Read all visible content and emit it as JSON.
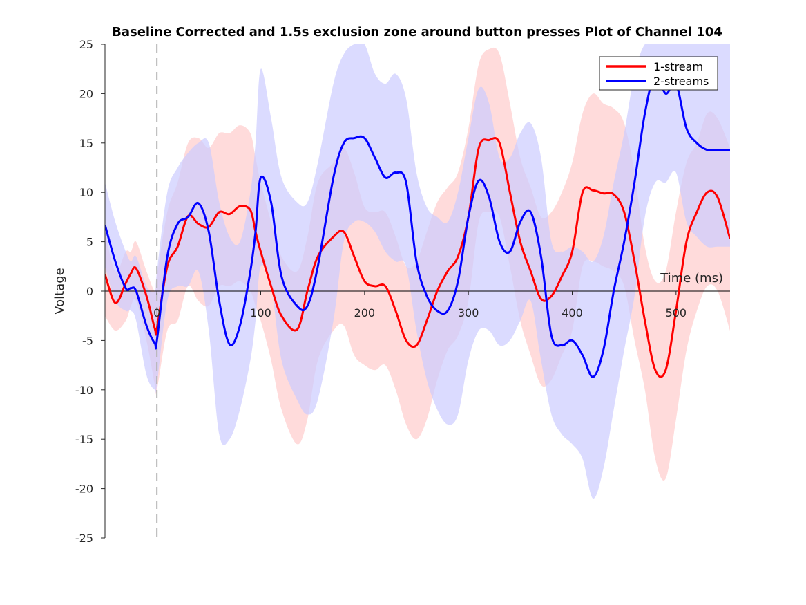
{
  "chart_data": {
    "type": "line",
    "title": "Baseline Corrected and 1.5s exclusion zone around button presses Plot of Channel 104",
    "xlabel": "Time (ms)",
    "ylabel": "Voltage",
    "xlim": [
      -50,
      552
    ],
    "ylim": [
      -25,
      25
    ],
    "xticks": [
      0,
      100,
      200,
      300,
      400,
      500
    ],
    "xtick_labels": [
      "0",
      "100",
      "200",
      "300",
      "400",
      "500"
    ],
    "yticks": [
      25,
      20,
      15,
      10,
      5,
      0,
      -5,
      -10,
      -15,
      -20,
      -25
    ],
    "ytick_labels": [
      "25",
      "20",
      "15",
      "10",
      "5",
      "0",
      "-5",
      "-10",
      "-15",
      "-20",
      "-25"
    ],
    "grid": false,
    "vline_x": 0,
    "legend": {
      "position": "top-right"
    },
    "x": [
      -50,
      -40,
      -30,
      -25,
      -20,
      -10,
      -2,
      0,
      10,
      20,
      30,
      40,
      50,
      60,
      70,
      80,
      90,
      95,
      100,
      110,
      120,
      135,
      145,
      155,
      170,
      180,
      190,
      200,
      210,
      220,
      230,
      240,
      250,
      260,
      270,
      280,
      290,
      300,
      310,
      320,
      330,
      340,
      350,
      360,
      370,
      380,
      390,
      400,
      410,
      420,
      430,
      440,
      450,
      460,
      470,
      480,
      490,
      500,
      510,
      520,
      530,
      540,
      552
    ],
    "series": [
      {
        "name": "1-stream",
        "color": "#ff0000",
        "band_color": "#ffcccc",
        "values": [
          1.7,
          -1.2,
          0.8,
          1.8,
          2.3,
          -0.5,
          -3.8,
          -3.8,
          2.5,
          4.5,
          7.6,
          6.8,
          6.5,
          8.0,
          7.8,
          8.6,
          8.2,
          6.0,
          4.0,
          0.5,
          -2.5,
          -3.9,
          0.0,
          3.5,
          5.5,
          6.0,
          3.5,
          1.0,
          0.5,
          0.5,
          -2.0,
          -5.0,
          -5.5,
          -3.0,
          0.0,
          2.0,
          3.5,
          7.5,
          14.5,
          15.3,
          15.0,
          10.0,
          5.0,
          2.0,
          -0.8,
          -0.5,
          1.5,
          4.0,
          10.0,
          10.2,
          9.9,
          9.8,
          8.0,
          3.0,
          -3.0,
          -8.0,
          -8.0,
          -2.0,
          5.0,
          8.0,
          10.0,
          9.5,
          5.3
        ],
        "lower": [
          -2.5,
          -4.0,
          -3.0,
          -1.5,
          -1.0,
          -5.0,
          -9.5,
          -10.0,
          -4.0,
          -3.0,
          0.5,
          -1.0,
          -1.5,
          0.5,
          0.5,
          1.0,
          0.0,
          -1.5,
          -3.0,
          -7.0,
          -12.0,
          -15.5,
          -13.0,
          -7.0,
          -4.0,
          -3.5,
          -6.5,
          -7.5,
          -8.0,
          -7.5,
          -10.0,
          -13.5,
          -15.0,
          -13.0,
          -9.0,
          -6.0,
          -4.5,
          -1.0,
          7.0,
          8.0,
          7.5,
          2.5,
          -3.0,
          -6.5,
          -9.5,
          -9.0,
          -6.5,
          -4.0,
          2.5,
          3.0,
          2.5,
          2.0,
          0.5,
          -5.0,
          -10.0,
          -17.0,
          -19.0,
          -13.0,
          -6.0,
          -2.0,
          0.5,
          0.0,
          -4.0
        ],
        "upper": [
          6.0,
          2.0,
          4.0,
          4.0,
          5.0,
          2.0,
          0.0,
          1.5,
          8.0,
          11.0,
          15.0,
          15.5,
          14.5,
          16.0,
          16.0,
          16.8,
          16.0,
          13.5,
          11.0,
          7.0,
          3.5,
          2.0,
          5.5,
          11.0,
          13.0,
          14.5,
          12.0,
          8.5,
          8.0,
          8.0,
          5.5,
          2.5,
          3.0,
          6.0,
          9.0,
          10.5,
          12.0,
          16.5,
          23.0,
          24.5,
          24.0,
          19.0,
          13.5,
          10.5,
          7.5,
          8.0,
          10.0,
          13.0,
          18.0,
          20.0,
          19.0,
          18.5,
          17.0,
          12.0,
          4.5,
          1.0,
          2.0,
          8.0,
          13.0,
          15.0,
          18.0,
          17.5,
          14.5
        ]
      },
      {
        "name": "2-streams",
        "color": "#0000ff",
        "band_color": "#ccccff",
        "values": [
          6.7,
          3.0,
          0.3,
          0.3,
          0.0,
          -3.5,
          -5.3,
          -5.0,
          3.5,
          6.8,
          7.5,
          8.9,
          6.0,
          -1.0,
          -5.4,
          -3.5,
          2.0,
          6.0,
          11.5,
          9.0,
          1.5,
          -1.5,
          -1.5,
          2.5,
          11.5,
          15.0,
          15.5,
          15.5,
          13.5,
          11.5,
          12.0,
          11.0,
          3.0,
          -0.5,
          -2.0,
          -2.0,
          1.0,
          7.5,
          11.2,
          9.5,
          5.0,
          4.0,
          7.0,
          8.0,
          3.5,
          -4.5,
          -5.5,
          -5.0,
          -6.5,
          -8.7,
          -6.0,
          0.0,
          5.0,
          11.0,
          18.0,
          22.0,
          20.0,
          21.0,
          16.5,
          15.0,
          14.3,
          14.3,
          14.3
        ],
        "lower": [
          2.5,
          -1.0,
          -2.0,
          -2.0,
          -3.0,
          -8.5,
          -10.0,
          -9.5,
          -1.0,
          0.5,
          0.5,
          2.0,
          -4.0,
          -14.5,
          -15.0,
          -12.0,
          -7.0,
          -3.0,
          2.5,
          0.5,
          -7.0,
          -11.0,
          -12.5,
          -11.0,
          -3.0,
          5.0,
          7.0,
          7.0,
          6.0,
          4.0,
          3.0,
          2.5,
          -4.0,
          -9.0,
          -12.0,
          -13.5,
          -12.5,
          -7.0,
          -4.0,
          -4.0,
          -5.5,
          -5.0,
          -3.0,
          -1.0,
          -7.0,
          -12.5,
          -14.5,
          -15.5,
          -17.0,
          -21.0,
          -18.0,
          -12.0,
          -6.0,
          -0.5,
          7.5,
          11.0,
          11.0,
          12.0,
          7.0,
          5.5,
          4.5,
          4.5,
          4.5
        ],
        "upper": [
          11.0,
          7.0,
          4.0,
          3.0,
          3.5,
          0.5,
          0.0,
          2.0,
          10.0,
          12.5,
          14.0,
          15.0,
          15.0,
          9.0,
          5.5,
          5.0,
          10.0,
          15.0,
          22.5,
          17.5,
          11.5,
          9.0,
          9.0,
          13.0,
          21.0,
          24.0,
          25.0,
          25.0,
          22.0,
          21.0,
          22.0,
          19.5,
          12.0,
          8.5,
          7.5,
          7.0,
          10.0,
          15.5,
          20.5,
          19.0,
          13.5,
          13.5,
          16.0,
          17.0,
          13.5,
          5.0,
          4.0,
          4.5,
          4.0,
          3.0,
          5.5,
          11.0,
          16.0,
          22.0,
          25.0,
          25.0,
          25.0,
          25.0,
          25.0,
          25.0,
          25.0,
          25.0,
          25.0
        ]
      }
    ]
  }
}
